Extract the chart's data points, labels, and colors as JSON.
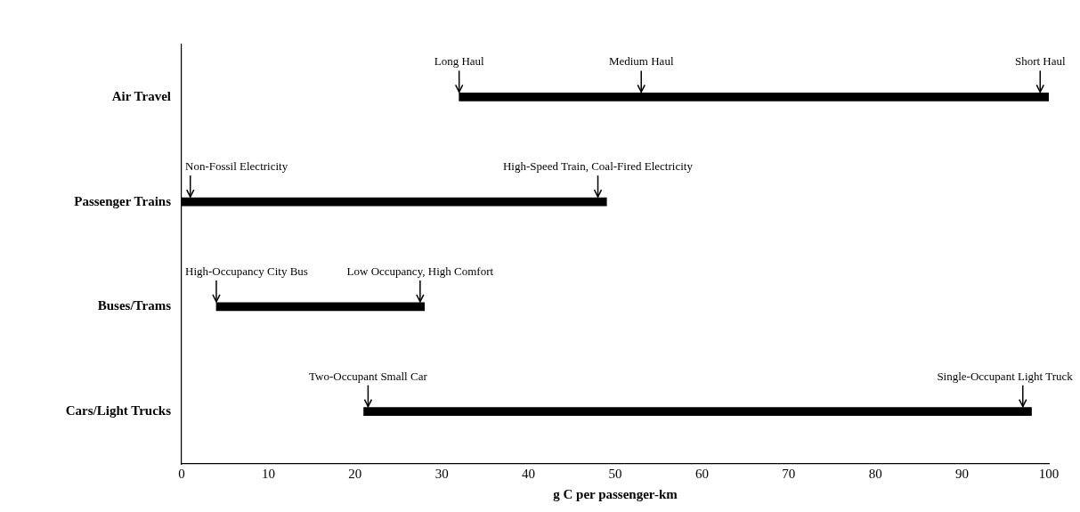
{
  "chart_data": {
    "type": "bar",
    "orientation": "horizontal",
    "xlabel": "g C per passenger-km",
    "categories": [
      "Air Travel",
      "Passenger Trains",
      "Buses/Trams",
      "Cars/Light Trucks"
    ],
    "base": [
      32,
      0,
      4,
      21
    ],
    "values": [
      68,
      49,
      24,
      77
    ],
    "color": "#000000",
    "xlim": [
      0,
      100
    ],
    "xticks": [
      0,
      10,
      20,
      30,
      40,
      50,
      60,
      70,
      80,
      90,
      100
    ],
    "annotations": [
      {
        "text": "Long Haul",
        "x": 32,
        "y": "Air Travel"
      },
      {
        "text": "Medium Haul",
        "x": 53,
        "y": "Air Travel"
      },
      {
        "text": "Short Haul",
        "x": 99,
        "y": "Air Travel"
      },
      {
        "text": "Non-Fossil Electricity",
        "x": 1,
        "y": "Passenger Trains"
      },
      {
        "text": "High-Speed Train, Coal-Fired Electricity",
        "x": 48,
        "y": "Passenger Trains"
      },
      {
        "text": "High-Occupancy City Bus",
        "x": 4,
        "y": "Buses/Trams"
      },
      {
        "text": "Low Occupancy, High Comfort",
        "x": 27.5,
        "y": "Buses/Trams"
      },
      {
        "text": "Two-Occupant Small Car",
        "x": 21.5,
        "y": "Cars/Light Trucks"
      },
      {
        "text": "Single-Occupant Light Truck",
        "x": 97,
        "y": "Cars/Light Trucks"
      }
    ]
  }
}
